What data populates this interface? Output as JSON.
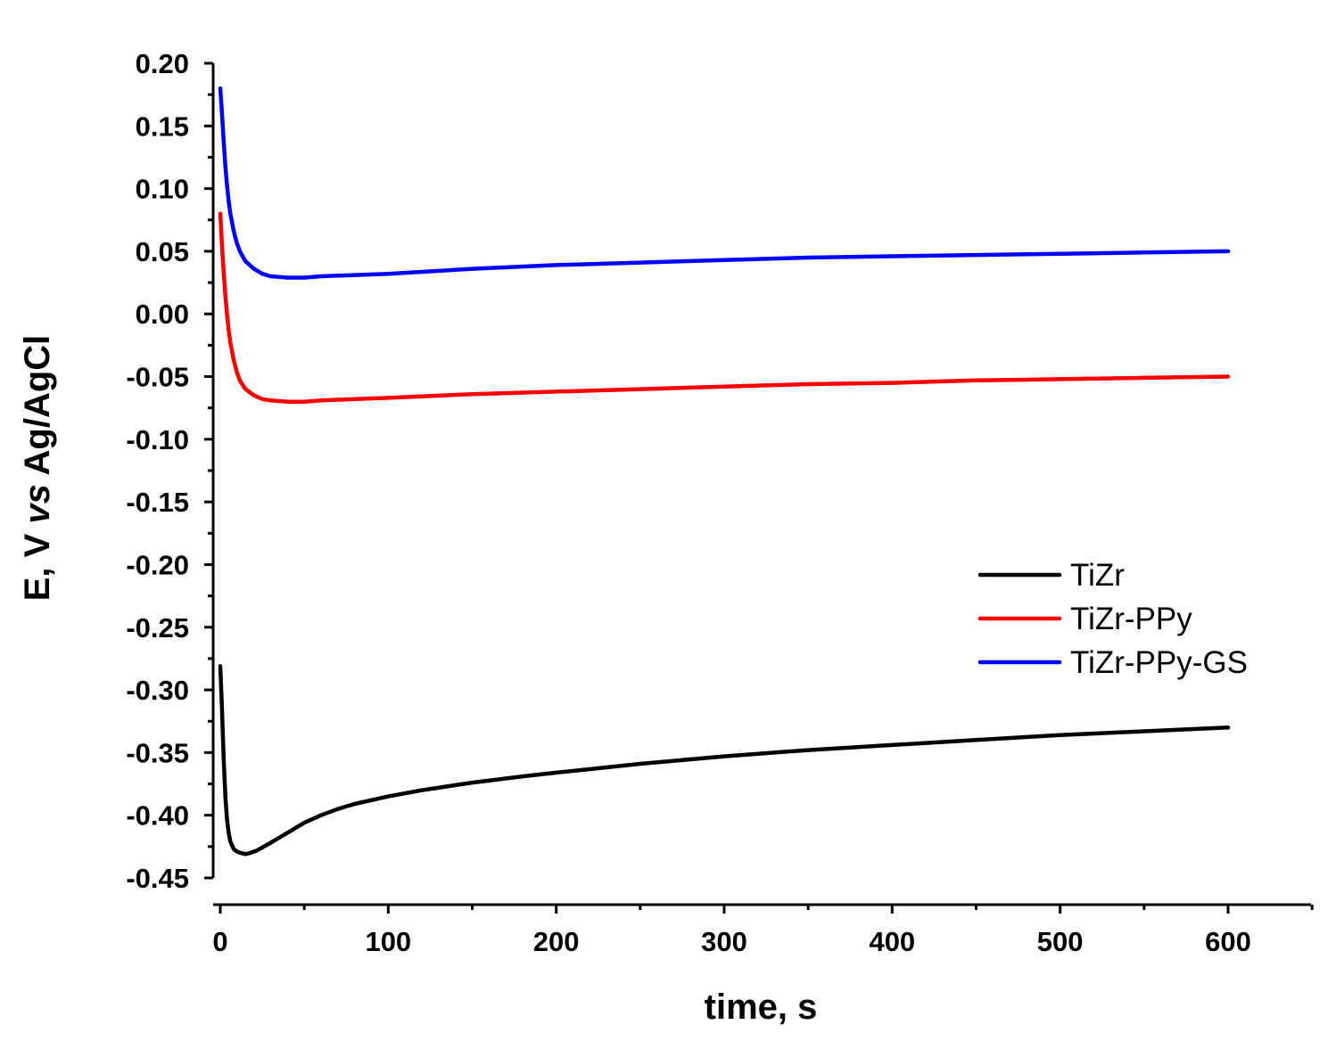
{
  "chart_data": {
    "type": "line",
    "title": "",
    "xlabel": "time, s",
    "ylabel": {
      "pre": "E, V ",
      "italic": "vs",
      "post": " Ag/AgCl"
    },
    "xlim": [
      0,
      650
    ],
    "ylim": [
      -0.45,
      0.2
    ],
    "x_ticks": [
      0,
      100,
      200,
      300,
      400,
      500,
      600
    ],
    "x_tick_labels": [
      "0",
      "100",
      "200",
      "300",
      "400",
      "500",
      "600"
    ],
    "y_ticks": [
      -0.45,
      -0.4,
      -0.35,
      -0.3,
      -0.25,
      -0.2,
      -0.15,
      -0.1,
      -0.05,
      0.0,
      0.05,
      0.1,
      0.15,
      0.2
    ],
    "y_tick_labels": [
      "-0.45",
      "-0.40",
      "-0.35",
      "-0.30",
      "-0.25",
      "-0.20",
      "-0.15",
      "-0.10",
      "-0.05",
      "0.00",
      "0.05",
      "0.10",
      "0.15",
      "0.20"
    ],
    "grid": false,
    "legend_position": "right",
    "series": [
      {
        "name": "TiZr",
        "color": "#000000",
        "x": [
          0,
          1,
          2,
          3,
          4,
          5,
          6,
          8,
          10,
          12,
          15,
          18,
          22,
          26,
          30,
          35,
          40,
          50,
          60,
          70,
          80,
          100,
          120,
          150,
          180,
          200,
          250,
          300,
          350,
          400,
          450,
          500,
          550,
          600
        ],
        "y": [
          -0.281,
          -0.315,
          -0.355,
          -0.385,
          -0.403,
          -0.414,
          -0.421,
          -0.427,
          -0.429,
          -0.43,
          -0.431,
          -0.43,
          -0.428,
          -0.425,
          -0.422,
          -0.418,
          -0.414,
          -0.406,
          -0.4,
          -0.395,
          -0.391,
          -0.385,
          -0.38,
          -0.374,
          -0.369,
          -0.366,
          -0.359,
          -0.353,
          -0.348,
          -0.344,
          -0.34,
          -0.336,
          -0.333,
          -0.33
        ]
      },
      {
        "name": "TiZr-PPy",
        "color": "#ff0000",
        "x": [
          0,
          1,
          2,
          3,
          4,
          5,
          6,
          8,
          10,
          12,
          15,
          20,
          25,
          30,
          40,
          50,
          60,
          80,
          100,
          150,
          200,
          250,
          300,
          350,
          400,
          450,
          500,
          550,
          600
        ],
        "y": [
          0.08,
          0.055,
          0.033,
          0.015,
          0.0,
          -0.013,
          -0.023,
          -0.037,
          -0.047,
          -0.054,
          -0.06,
          -0.065,
          -0.068,
          -0.069,
          -0.07,
          -0.07,
          -0.069,
          -0.068,
          -0.067,
          -0.064,
          -0.062,
          -0.06,
          -0.058,
          -0.056,
          -0.055,
          -0.053,
          -0.052,
          -0.051,
          -0.05
        ]
      },
      {
        "name": "TiZr-PPy-GS",
        "color": "#0000ff",
        "x": [
          0,
          1,
          2,
          3,
          4,
          5,
          6,
          8,
          10,
          12,
          15,
          20,
          25,
          30,
          40,
          50,
          60,
          80,
          100,
          150,
          200,
          250,
          300,
          350,
          400,
          450,
          500,
          550,
          600
        ],
        "y": [
          0.18,
          0.16,
          0.138,
          0.118,
          0.103,
          0.09,
          0.08,
          0.066,
          0.056,
          0.049,
          0.042,
          0.036,
          0.032,
          0.03,
          0.029,
          0.029,
          0.03,
          0.031,
          0.032,
          0.036,
          0.039,
          0.041,
          0.043,
          0.045,
          0.046,
          0.047,
          0.048,
          0.049,
          0.05
        ]
      }
    ]
  }
}
